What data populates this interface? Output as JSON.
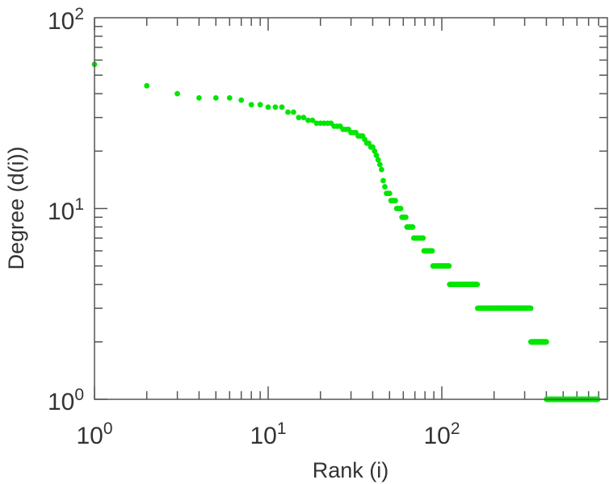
{
  "chart_data": {
    "type": "scatter",
    "xscale": "log",
    "yscale": "log",
    "xlabel": "Rank (i)",
    "ylabel": "Degree (d(i))",
    "xlim": [
      1,
      900
    ],
    "ylim": [
      1,
      100
    ],
    "x_ticks": [
      {
        "base": "10",
        "exp": "0",
        "value": 1
      },
      {
        "base": "10",
        "exp": "1",
        "value": 10
      },
      {
        "base": "10",
        "exp": "2",
        "value": 100
      }
    ],
    "y_ticks": [
      {
        "base": "10",
        "exp": "0",
        "value": 1
      },
      {
        "base": "10",
        "exp": "1",
        "value": 10
      },
      {
        "base": "10",
        "exp": "2",
        "value": 100
      }
    ],
    "grid": false,
    "marker_color": "#00e600",
    "points": [
      [
        1,
        57
      ],
      [
        2,
        44
      ],
      [
        3,
        40
      ],
      [
        4,
        38
      ],
      [
        5,
        38
      ],
      [
        6,
        38
      ],
      [
        7,
        37
      ],
      [
        8,
        35
      ],
      [
        9,
        35
      ],
      [
        10,
        34
      ],
      [
        11,
        34
      ],
      [
        12,
        34
      ],
      [
        13,
        32
      ],
      [
        14,
        32
      ],
      [
        15,
        30
      ],
      [
        16,
        30
      ],
      [
        17,
        29
      ],
      [
        18,
        29
      ]
    ],
    "runs": [
      {
        "degree": 28,
        "rank_start": 19,
        "rank_end": 23
      },
      {
        "degree": 27,
        "rank_start": 24,
        "rank_end": 26
      },
      {
        "degree": 26,
        "rank_start": 27,
        "rank_end": 29
      },
      {
        "degree": 25,
        "rank_start": 30,
        "rank_end": 32
      },
      {
        "degree": 24,
        "rank_start": 33,
        "rank_end": 35
      },
      {
        "degree": 23,
        "rank_start": 36,
        "rank_end": 36
      },
      {
        "degree": 22,
        "rank_start": 37,
        "rank_end": 38
      },
      {
        "degree": 21,
        "rank_start": 39,
        "rank_end": 40
      },
      {
        "degree": 20,
        "rank_start": 41,
        "rank_end": 41
      },
      {
        "degree": 19,
        "rank_start": 42,
        "rank_end": 42
      },
      {
        "degree": 18,
        "rank_start": 43,
        "rank_end": 43
      },
      {
        "degree": 17,
        "rank_start": 44,
        "rank_end": 44
      },
      {
        "degree": 16,
        "rank_start": 45,
        "rank_end": 45
      },
      {
        "degree": 14,
        "rank_start": 46,
        "rank_end": 46
      },
      {
        "degree": 13,
        "rank_start": 47,
        "rank_end": 47
      },
      {
        "degree": 12,
        "rank_start": 48,
        "rank_end": 50
      },
      {
        "degree": 11,
        "rank_start": 51,
        "rank_end": 54
      },
      {
        "degree": 10,
        "rank_start": 55,
        "rank_end": 58
      },
      {
        "degree": 9,
        "rank_start": 59,
        "rank_end": 62
      },
      {
        "degree": 8,
        "rank_start": 63,
        "rank_end": 68
      },
      {
        "degree": 7,
        "rank_start": 69,
        "rank_end": 78
      },
      {
        "degree": 6,
        "rank_start": 79,
        "rank_end": 88
      },
      {
        "degree": 5,
        "rank_start": 89,
        "rank_end": 110
      },
      {
        "degree": 4,
        "rank_start": 111,
        "rank_end": 160
      },
      {
        "degree": 3,
        "rank_start": 161,
        "rank_end": 325
      },
      {
        "degree": 2,
        "rank_start": 326,
        "rank_end": 400
      },
      {
        "degree": 1,
        "rank_start": 401,
        "rank_end": 790
      }
    ]
  }
}
